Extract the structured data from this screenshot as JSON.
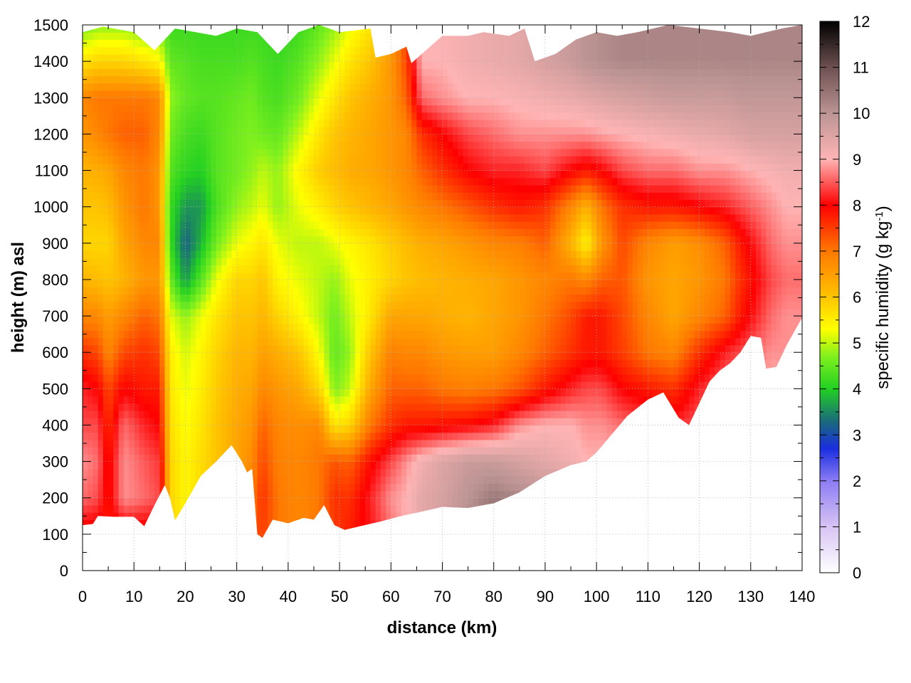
{
  "chart_data": {
    "type": "heatmap",
    "title": "",
    "xlabel": "distance (km)",
    "ylabel": "height (m) asl",
    "xlim": [
      0,
      140
    ],
    "ylim": [
      0,
      1500
    ],
    "x_ticks": [
      "0",
      "10",
      "20",
      "30",
      "40",
      "50",
      "60",
      "70",
      "80",
      "90",
      "100",
      "110",
      "120",
      "130",
      "140"
    ],
    "y_ticks": [
      "0",
      "100",
      "200",
      "300",
      "400",
      "500",
      "600",
      "700",
      "800",
      "900",
      "1000",
      "1100",
      "1200",
      "1300",
      "1400",
      "1500"
    ],
    "grid": true,
    "colorbar": {
      "label_main": "specific humidity (g kg",
      "label_sup": "-1",
      "label_end": ")",
      "range": [
        0,
        12
      ],
      "ticks": [
        "0",
        "1",
        "2",
        "3",
        "4",
        "5",
        "6",
        "7",
        "8",
        "9",
        "10",
        "11",
        "12"
      ],
      "colors": [
        {
          "v": 0,
          "c": "#ffffff"
        },
        {
          "v": 1,
          "c": "#d8c4f4"
        },
        {
          "v": 2,
          "c": "#8c7cf4"
        },
        {
          "v": 2.7,
          "c": "#1a2ee0"
        },
        {
          "v": 3.3,
          "c": "#1a6a7a"
        },
        {
          "v": 4,
          "c": "#22d022"
        },
        {
          "v": 4.7,
          "c": "#7ef01e"
        },
        {
          "v": 5.3,
          "c": "#ffff00"
        },
        {
          "v": 6,
          "c": "#ffc400"
        },
        {
          "v": 7,
          "c": "#ff7800"
        },
        {
          "v": 8,
          "c": "#ff0000"
        },
        {
          "v": 9,
          "c": "#ffb4b4"
        },
        {
          "v": 10,
          "c": "#bc9494"
        },
        {
          "v": 11,
          "c": "#6e5050"
        },
        {
          "v": 12,
          "c": "#000000"
        }
      ]
    },
    "ground_height": [
      [
        0,
        125
      ],
      [
        2,
        128
      ],
      [
        3,
        150
      ],
      [
        6,
        148
      ],
      [
        10,
        148
      ],
      [
        12,
        122
      ],
      [
        14,
        180
      ],
      [
        16,
        235
      ],
      [
        17,
        200
      ],
      [
        18,
        138
      ],
      [
        20,
        185
      ],
      [
        23,
        260
      ],
      [
        26,
        300
      ],
      [
        29,
        345
      ],
      [
        31,
        300
      ],
      [
        32,
        270
      ],
      [
        33,
        280
      ],
      [
        34,
        100
      ],
      [
        35,
        90
      ],
      [
        37,
        140
      ],
      [
        40,
        130
      ],
      [
        43,
        145
      ],
      [
        45,
        140
      ],
      [
        47,
        180
      ],
      [
        49,
        125
      ],
      [
        51,
        112
      ],
      [
        54,
        122
      ],
      [
        58,
        135
      ],
      [
        62,
        150
      ],
      [
        66,
        162
      ],
      [
        70,
        175
      ],
      [
        75,
        172
      ],
      [
        80,
        185
      ],
      [
        85,
        215
      ],
      [
        90,
        260
      ],
      [
        93,
        278
      ],
      [
        95,
        290
      ],
      [
        98,
        300
      ],
      [
        100,
        325
      ],
      [
        103,
        375
      ],
      [
        106,
        425
      ],
      [
        110,
        470
      ],
      [
        113,
        490
      ],
      [
        116,
        420
      ],
      [
        118,
        400
      ],
      [
        120,
        460
      ],
      [
        122,
        520
      ],
      [
        124,
        550
      ],
      [
        126,
        570
      ],
      [
        128,
        600
      ],
      [
        130,
        645
      ],
      [
        132,
        640
      ],
      [
        133,
        555
      ],
      [
        135,
        560
      ],
      [
        137,
        620
      ],
      [
        140,
        695
      ]
    ],
    "top_height": [
      [
        0,
        1480
      ],
      [
        4,
        1495
      ],
      [
        10,
        1480
      ],
      [
        14,
        1430
      ],
      [
        18,
        1490
      ],
      [
        26,
        1470
      ],
      [
        30,
        1490
      ],
      [
        34,
        1480
      ],
      [
        38,
        1420
      ],
      [
        42,
        1480
      ],
      [
        46,
        1500
      ],
      [
        50,
        1480
      ],
      [
        56,
        1490
      ],
      [
        57,
        1410
      ],
      [
        60,
        1420
      ],
      [
        63,
        1440
      ],
      [
        64,
        1395
      ],
      [
        66,
        1420
      ],
      [
        70,
        1470
      ],
      [
        75,
        1470
      ],
      [
        78,
        1480
      ],
      [
        83,
        1470
      ],
      [
        86,
        1490
      ],
      [
        88,
        1400
      ],
      [
        92,
        1420
      ],
      [
        96,
        1460
      ],
      [
        100,
        1480
      ],
      [
        104,
        1470
      ],
      [
        108,
        1480
      ],
      [
        114,
        1500
      ],
      [
        120,
        1490
      ],
      [
        126,
        1480
      ],
      [
        130,
        1470
      ],
      [
        136,
        1490
      ],
      [
        140,
        1500
      ]
    ],
    "field": {
      "x": [
        0,
        3,
        5,
        8,
        12,
        15,
        17,
        20,
        23,
        26,
        30,
        33,
        35,
        38,
        42,
        46,
        49,
        52,
        56,
        60,
        63,
        66,
        70,
        75,
        80,
        85,
        90,
        95,
        98,
        101,
        105,
        110,
        115,
        120,
        125,
        128,
        131,
        134,
        137,
        140
      ],
      "y": [
        0,
        100,
        200,
        300,
        400,
        500,
        600,
        700,
        800,
        900,
        1000,
        1100,
        1200,
        1300,
        1400,
        1500
      ],
      "q_by_height": [
        [
          7.8,
          7.8,
          7.8,
          7.8,
          7.8,
          7.8,
          5.8,
          5.5,
          5.8,
          6.0,
          6.3,
          7.2,
          7.5,
          7.0,
          6.8,
          7.0,
          7.5,
          7.8,
          8.1,
          8.6,
          9.0,
          9.4,
          9.6,
          10.2,
          10.8,
          11.0,
          11.0,
          10.5,
          10.0,
          9.6,
          9.3,
          9.1,
          9.0,
          9.1,
          9.5,
          9.7,
          9.6,
          9.7,
          9.8,
          9.8
        ],
        [
          7.8,
          7.8,
          7.8,
          7.8,
          7.8,
          7.8,
          5.8,
          5.5,
          5.8,
          6.0,
          6.3,
          7.2,
          7.5,
          7.0,
          6.8,
          7.0,
          7.5,
          7.8,
          8.1,
          8.6,
          9.0,
          9.4,
          9.6,
          10.2,
          10.8,
          11.0,
          11.0,
          10.5,
          10.0,
          9.6,
          9.3,
          9.1,
          9.0,
          9.1,
          9.5,
          9.7,
          9.6,
          9.7,
          9.8,
          9.8
        ],
        [
          8.6,
          8.4,
          7.8,
          8.8,
          8.6,
          8.4,
          5.8,
          5.4,
          5.7,
          6.0,
          6.3,
          7.0,
          7.6,
          7.0,
          6.8,
          7.0,
          7.6,
          7.6,
          8.2,
          8.8,
          9.0,
          9.4,
          9.6,
          10.0,
          10.4,
          10.2,
          10.0,
          9.8,
          9.6,
          9.4,
          9.2,
          9.1,
          9.0,
          9.1,
          9.4,
          9.6,
          9.5,
          9.6,
          9.6,
          9.6
        ],
        [
          8.8,
          8.6,
          7.8,
          8.8,
          8.5,
          8.3,
          5.8,
          5.4,
          5.7,
          6.0,
          6.4,
          6.8,
          7.4,
          6.9,
          6.8,
          7.0,
          7.3,
          7.2,
          7.9,
          8.4,
          8.8,
          9.2,
          9.5,
          9.8,
          9.8,
          9.6,
          9.4,
          9.2,
          9.0,
          9.0,
          9.0,
          9.0,
          9.0,
          9.1,
          9.3,
          9.4,
          9.3,
          9.4,
          9.4,
          9.4
        ],
        [
          8.4,
          8.4,
          7.6,
          8.6,
          8.2,
          8.0,
          5.7,
          5.3,
          5.6,
          6.0,
          6.4,
          6.6,
          7.2,
          6.8,
          6.7,
          6.8,
          5.6,
          5.8,
          7.0,
          7.6,
          7.8,
          7.8,
          7.9,
          8.0,
          8.2,
          8.8,
          9.0,
          9.0,
          8.8,
          8.8,
          8.6,
          8.4,
          8.2,
          8.5,
          8.9,
          9.1,
          9.0,
          9.2,
          9.2,
          9.2
        ],
        [
          8.2,
          8.0,
          7.4,
          8.0,
          7.8,
          7.8,
          5.6,
          5.2,
          5.5,
          5.9,
          6.3,
          6.4,
          6.8,
          6.6,
          6.4,
          5.8,
          4.7,
          5.0,
          6.4,
          7.2,
          7.2,
          7.2,
          7.0,
          6.9,
          7.0,
          7.3,
          7.8,
          8.2,
          8.4,
          8.4,
          8.0,
          7.8,
          7.6,
          8.2,
          8.6,
          8.8,
          8.8,
          9.0,
          9.0,
          9.0
        ],
        [
          7.6,
          7.4,
          6.8,
          7.4,
          7.6,
          7.4,
          5.5,
          5.1,
          5.4,
          5.8,
          6.2,
          6.2,
          6.5,
          6.3,
          6.0,
          5.3,
          4.5,
          4.8,
          6.0,
          6.9,
          6.8,
          6.8,
          6.6,
          6.5,
          6.5,
          6.8,
          7.2,
          7.6,
          7.8,
          7.8,
          7.5,
          7.0,
          6.8,
          7.6,
          8.2,
          8.4,
          8.6,
          8.8,
          8.8,
          8.8
        ],
        [
          6.8,
          6.8,
          6.5,
          6.8,
          7.2,
          7.0,
          5.2,
          4.8,
          5.2,
          5.6,
          6.0,
          6.0,
          6.2,
          5.8,
          5.4,
          5.0,
          4.6,
          5.0,
          5.6,
          6.4,
          6.4,
          6.4,
          6.3,
          6.2,
          6.4,
          6.6,
          7.0,
          7.4,
          7.8,
          7.8,
          7.4,
          6.8,
          6.4,
          6.8,
          7.2,
          7.8,
          8.2,
          8.6,
          8.8,
          8.8
        ],
        [
          6.2,
          6.1,
          6.0,
          6.2,
          6.6,
          6.6,
          4.6,
          3.6,
          4.4,
          5.2,
          5.8,
          5.8,
          6.0,
          5.4,
          5.2,
          5.0,
          4.8,
          5.2,
          5.5,
          5.8,
          6.0,
          6.1,
          6.2,
          6.3,
          6.4,
          6.6,
          6.8,
          7.0,
          6.8,
          7.2,
          7.3,
          6.6,
          6.4,
          6.6,
          7.0,
          7.6,
          8.0,
          8.4,
          8.6,
          8.6
        ],
        [
          5.8,
          5.8,
          5.8,
          6.4,
          6.8,
          6.8,
          4.2,
          3.2,
          3.8,
          4.6,
          5.2,
          5.4,
          5.6,
          5.2,
          5.0,
          5.0,
          5.2,
          5.4,
          5.6,
          5.9,
          6.1,
          6.3,
          6.4,
          6.6,
          6.8,
          6.9,
          7.2,
          6.2,
          5.4,
          6.6,
          7.4,
          6.8,
          6.5,
          6.7,
          7.2,
          7.8,
          8.2,
          8.6,
          8.8,
          8.8
        ],
        [
          6.0,
          6.0,
          6.1,
          6.6,
          7.0,
          6.6,
          4.2,
          3.6,
          3.6,
          4.3,
          4.8,
          5.0,
          5.2,
          4.8,
          5.2,
          5.5,
          5.8,
          6.0,
          6.2,
          6.4,
          6.6,
          6.8,
          7.0,
          7.3,
          7.6,
          7.8,
          7.6,
          6.8,
          6.2,
          7.0,
          7.6,
          7.8,
          7.8,
          8.0,
          8.2,
          8.4,
          8.6,
          8.8,
          9.0,
          9.0
        ],
        [
          6.2,
          6.3,
          6.4,
          6.8,
          7.0,
          6.6,
          4.4,
          4.1,
          4.0,
          4.4,
          4.6,
          4.8,
          5.0,
          4.8,
          5.4,
          5.9,
          6.1,
          6.3,
          6.4,
          6.6,
          6.8,
          7.2,
          7.6,
          8.0,
          8.2,
          8.2,
          8.4,
          8.0,
          7.8,
          8.0,
          8.4,
          8.6,
          8.6,
          8.8,
          8.8,
          8.9,
          9.0,
          9.1,
          9.2,
          9.2
        ],
        [
          6.6,
          6.8,
          7.0,
          7.2,
          7.2,
          6.8,
          4.6,
          4.3,
          4.2,
          4.4,
          4.6,
          4.7,
          4.6,
          4.5,
          5.0,
          5.6,
          6.0,
          6.2,
          6.4,
          6.6,
          6.8,
          7.6,
          8.0,
          8.4,
          8.6,
          8.8,
          8.8,
          8.8,
          8.8,
          8.9,
          9.0,
          9.1,
          9.2,
          9.3,
          9.4,
          9.5,
          9.6,
          9.6,
          9.6,
          9.6
        ],
        [
          6.8,
          7.0,
          7.0,
          7.0,
          7.0,
          6.8,
          4.8,
          4.5,
          4.4,
          4.4,
          4.5,
          4.6,
          4.4,
          4.3,
          4.6,
          5.2,
          5.6,
          6.0,
          6.3,
          6.6,
          7.2,
          8.6,
          8.8,
          9.0,
          9.0,
          9.1,
          9.2,
          9.3,
          9.4,
          9.5,
          9.6,
          9.7,
          9.8,
          9.8,
          9.8,
          9.9,
          9.9,
          9.9,
          9.9,
          9.9
        ],
        [
          5.6,
          5.8,
          5.8,
          5.8,
          5.6,
          5.4,
          4.5,
          4.4,
          4.3,
          4.3,
          4.3,
          4.4,
          4.3,
          4.2,
          4.4,
          4.8,
          5.2,
          5.6,
          6.0,
          6.6,
          7.4,
          9.0,
          9.0,
          9.2,
          9.3,
          9.4,
          9.6,
          9.8,
          10.0,
          10.1,
          10.2,
          10.2,
          10.2,
          10.2,
          10.2,
          10.2,
          10.2,
          10.2,
          10.2,
          10.2
        ],
        [
          4.6,
          4.8,
          4.8,
          4.8,
          4.6,
          4.6,
          4.2,
          4.2,
          4.2,
          4.2,
          4.2,
          4.2,
          4.2,
          4.1,
          4.2,
          4.5,
          4.8,
          5.2,
          5.6,
          6.4,
          7.4,
          9.0,
          9.1,
          9.2,
          9.3,
          9.4,
          9.6,
          9.8,
          10.0,
          10.1,
          10.2,
          10.2,
          10.2,
          10.2,
          10.2,
          10.2,
          10.2,
          10.2,
          10.2,
          10.2
        ]
      ]
    }
  }
}
